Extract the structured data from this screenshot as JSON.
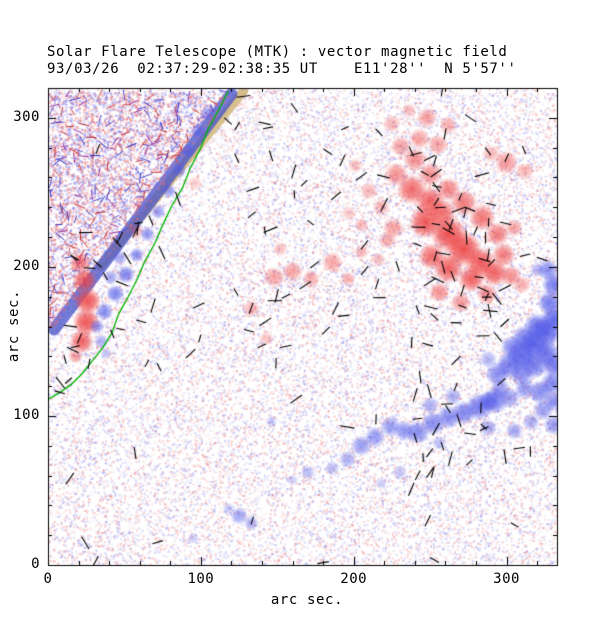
{
  "title": "Solar Flare Telescope (MTK) : vector magnetic field",
  "subtitle": "93/03/26  02:37:29-02:38:35 UT    E11'28''  N 5'57''",
  "colors": {
    "frame": "#000000",
    "positive": "#ee4444",
    "negative": "#5058e8",
    "contour": "#00b400",
    "noise_red": "#eb6e6e",
    "noise_blue": "#7878eb",
    "vector": "#000000"
  },
  "chart_data": {
    "type": "heatmap",
    "map_kind": "vector magnetogram",
    "title": "Solar Flare Telescope (MTK) : vector magnetic field",
    "xlabel": "arc sec.",
    "ylabel": "arc sec.",
    "xlim": [
      0,
      333
    ],
    "ylim": [
      0,
      320
    ],
    "x_ticks": [
      0,
      100,
      200,
      300
    ],
    "y_ticks": [
      0,
      100,
      200,
      300
    ],
    "minor_tick_step": 20,
    "grid": false,
    "legend": "none",
    "positive_blobs": [
      [
        22,
        150,
        8,
        0.85
      ],
      [
        25,
        163,
        9,
        0.9
      ],
      [
        26,
        177,
        9,
        0.9
      ],
      [
        24,
        191,
        8,
        0.85
      ],
      [
        21,
        203,
        7,
        0.7
      ],
      [
        18,
        140,
        5,
        0.5
      ],
      [
        58,
        224,
        5,
        0.35
      ],
      [
        96,
        256,
        5,
        0.28
      ],
      [
        133,
        172,
        6,
        0.4
      ],
      [
        143,
        152,
        5,
        0.3
      ],
      [
        148,
        193,
        7,
        0.5
      ],
      [
        152,
        212,
        5,
        0.35
      ],
      [
        160,
        197,
        7,
        0.5
      ],
      [
        172,
        192,
        6,
        0.45
      ],
      [
        186,
        203,
        7,
        0.5
      ],
      [
        196,
        192,
        5,
        0.4
      ],
      [
        205,
        210,
        5,
        0.35
      ],
      [
        216,
        205,
        5,
        0.35
      ],
      [
        201,
        268,
        5,
        0.35
      ],
      [
        197,
        236,
        5,
        0.3
      ],
      [
        226,
        226,
        7,
        0.5
      ],
      [
        222,
        218,
        6,
        0.45
      ],
      [
        228,
        262,
        8,
        0.6
      ],
      [
        238,
        252,
        10,
        0.8
      ],
      [
        250,
        244,
        10,
        0.85
      ],
      [
        247,
        230,
        11,
        0.9
      ],
      [
        258,
        236,
        9,
        0.8
      ],
      [
        262,
        222,
        12,
        0.95
      ],
      [
        272,
        212,
        12,
        0.95
      ],
      [
        283,
        203,
        10,
        0.9
      ],
      [
        292,
        196,
        9,
        0.85
      ],
      [
        277,
        192,
        9,
        0.85
      ],
      [
        262,
        199,
        10,
        0.85
      ],
      [
        251,
        207,
        9,
        0.8
      ],
      [
        256,
        183,
        7,
        0.6
      ],
      [
        270,
        176,
        7,
        0.55
      ],
      [
        287,
        182,
        7,
        0.6
      ],
      [
        298,
        208,
        8,
        0.7
      ],
      [
        294,
        222,
        8,
        0.7
      ],
      [
        284,
        233,
        9,
        0.75
      ],
      [
        272,
        243,
        9,
        0.7
      ],
      [
        262,
        252,
        8,
        0.65
      ],
      [
        250,
        262,
        8,
        0.6
      ],
      [
        240,
        272,
        8,
        0.6
      ],
      [
        231,
        281,
        7,
        0.5
      ],
      [
        243,
        286,
        7,
        0.5
      ],
      [
        255,
        282,
        7,
        0.5
      ],
      [
        225,
        296,
        6,
        0.4
      ],
      [
        248,
        300,
        7,
        0.5
      ],
      [
        262,
        295,
        6,
        0.45
      ],
      [
        236,
        305,
        5,
        0.35
      ],
      [
        210,
        251,
        6,
        0.4
      ],
      [
        218,
        240,
        6,
        0.4
      ],
      [
        205,
        228,
        5,
        0.35
      ],
      [
        303,
        194,
        7,
        0.6
      ],
      [
        310,
        188,
        6,
        0.45
      ],
      [
        305,
        226,
        6,
        0.5
      ],
      [
        300,
        270,
        8,
        0.55
      ],
      [
        312,
        264,
        6,
        0.4
      ],
      [
        290,
        276,
        6,
        0.4
      ]
    ],
    "negative_blobs": [
      [
        104,
        303,
        5,
        0.6
      ],
      [
        98,
        291,
        5,
        0.6
      ],
      [
        92,
        278,
        5,
        0.6
      ],
      [
        86,
        265,
        5,
        0.6
      ],
      [
        79,
        251,
        5,
        0.6
      ],
      [
        72,
        237,
        5,
        0.6
      ],
      [
        65,
        222,
        5,
        0.65
      ],
      [
        58,
        208,
        5,
        0.7
      ],
      [
        51,
        195,
        6,
        0.75
      ],
      [
        44,
        182,
        6,
        0.75
      ],
      [
        37,
        170,
        6,
        0.7
      ],
      [
        32,
        160,
        5,
        0.6
      ],
      [
        47,
        206,
        5,
        0.55
      ],
      [
        41,
        193,
        5,
        0.55
      ],
      [
        35,
        150,
        5,
        0.5
      ],
      [
        38,
        142,
        4,
        0.4
      ],
      [
        125,
        33,
        6,
        0.55
      ],
      [
        133,
        28,
        5,
        0.5
      ],
      [
        118,
        38,
        4,
        0.35
      ],
      [
        95,
        18,
        4,
        0.3
      ],
      [
        160,
        57,
        4,
        0.3
      ],
      [
        170,
        62,
        5,
        0.4
      ],
      [
        186,
        65,
        5,
        0.4
      ],
      [
        196,
        71,
        6,
        0.5
      ],
      [
        205,
        80,
        7,
        0.6
      ],
      [
        214,
        86,
        7,
        0.6
      ],
      [
        224,
        93,
        7,
        0.6
      ],
      [
        233,
        90,
        7,
        0.65
      ],
      [
        242,
        89,
        8,
        0.7
      ],
      [
        252,
        95,
        8,
        0.7
      ],
      [
        256,
        82,
        5,
        0.4
      ],
      [
        262,
        99,
        8,
        0.7
      ],
      [
        272,
        102,
        8,
        0.75
      ],
      [
        282,
        106,
        9,
        0.8
      ],
      [
        288,
        92,
        6,
        0.5
      ],
      [
        292,
        110,
        9,
        0.8
      ],
      [
        250,
        107,
        6,
        0.5
      ],
      [
        265,
        113,
        6,
        0.5
      ],
      [
        230,
        62,
        5,
        0.35
      ],
      [
        218,
        55,
        4,
        0.3
      ],
      [
        146,
        96,
        4,
        0.3
      ],
      [
        294,
        128,
        8,
        0.7
      ],
      [
        302,
        134,
        9,
        0.8
      ],
      [
        310,
        140,
        10,
        0.9
      ],
      [
        318,
        148,
        10,
        0.95
      ],
      [
        326,
        156,
        10,
        0.95
      ],
      [
        331,
        165,
        9,
        0.9
      ],
      [
        328,
        176,
        8,
        0.8
      ],
      [
        331,
        188,
        8,
        0.8
      ],
      [
        327,
        198,
        7,
        0.7
      ],
      [
        320,
        160,
        9,
        0.85
      ],
      [
        312,
        152,
        9,
        0.8
      ],
      [
        304,
        146,
        8,
        0.75
      ],
      [
        310,
        128,
        8,
        0.7
      ],
      [
        318,
        134,
        9,
        0.8
      ],
      [
        326,
        142,
        9,
        0.85
      ],
      [
        331,
        134,
        8,
        0.8
      ],
      [
        330,
        122,
        8,
        0.75
      ],
      [
        322,
        116,
        8,
        0.7
      ],
      [
        312,
        118,
        7,
        0.6
      ],
      [
        302,
        112,
        7,
        0.6
      ],
      [
        331,
        110,
        7,
        0.65
      ],
      [
        324,
        104,
        7,
        0.6
      ],
      [
        331,
        94,
        7,
        0.6
      ],
      [
        316,
        96,
        6,
        0.5
      ],
      [
        305,
        90,
        6,
        0.5
      ],
      [
        296,
        118,
        7,
        0.6
      ],
      [
        288,
        110,
        7,
        0.6
      ],
      [
        288,
        138,
        6,
        0.45
      ],
      [
        320,
        198,
        5,
        0.45
      ]
    ],
    "neutral_line_contour": [
      [
        118,
        318
      ],
      [
        112,
        306
      ],
      [
        105,
        293
      ],
      [
        100,
        280
      ],
      [
        93,
        266
      ],
      [
        88,
        253
      ],
      [
        81,
        241
      ],
      [
        75,
        228
      ],
      [
        70,
        216
      ],
      [
        63,
        203
      ],
      [
        58,
        191
      ],
      [
        52,
        179
      ],
      [
        46,
        168
      ],
      [
        42,
        156
      ],
      [
        36,
        146
      ],
      [
        29,
        137
      ],
      [
        22,
        128
      ],
      [
        15,
        121
      ],
      [
        8,
        116
      ],
      [
        0,
        111
      ]
    ],
    "limb_region": {
      "triangle": [
        [
          0,
          156
        ],
        [
          122,
          318
        ],
        [
          0,
          318
        ]
      ],
      "blue_band": {
        "from": [
          4,
          158
        ],
        "to": [
          120,
          316
        ],
        "width": 12,
        "color": "#4450c8",
        "alpha": 0.75
      },
      "tan_band": {
        "from": [
          34,
          200
        ],
        "to": [
          128,
          318
        ],
        "width": 9,
        "color": "#cdb272",
        "alpha": 0.8
      },
      "arrows": {
        "count": 170,
        "seed": 7,
        "colors": [
          "#3434c4",
          "#c43434",
          "#9a3aa8",
          "#d05858",
          "#5858d4"
        ]
      },
      "noise": {
        "count": 3000,
        "seed": 5
      }
    },
    "vector_field_regions": [
      {
        "x0": 210,
        "y0": 170,
        "x1": 315,
        "y1": 280,
        "count": 42,
        "seed": 11
      },
      {
        "x0": 235,
        "y0": 60,
        "x1": 333,
        "y1": 210,
        "count": 40,
        "seed": 12
      },
      {
        "x0": 5,
        "y0": 115,
        "x1": 80,
        "y1": 235,
        "count": 26,
        "seed": 13
      },
      {
        "x0": 0,
        "y0": 0,
        "x1": 333,
        "y1": 318,
        "count": 50,
        "seed": 14
      },
      {
        "x0": 115,
        "y0": 245,
        "x1": 245,
        "y1": 318,
        "count": 14,
        "seed": 15
      },
      {
        "x0": 125,
        "y0": 145,
        "x1": 215,
        "y1": 230,
        "count": 12,
        "seed": 16
      }
    ],
    "background_noise": {
      "count": 26000,
      "seed": 3,
      "strong_count": 1200,
      "strong_seed": 4
    }
  }
}
